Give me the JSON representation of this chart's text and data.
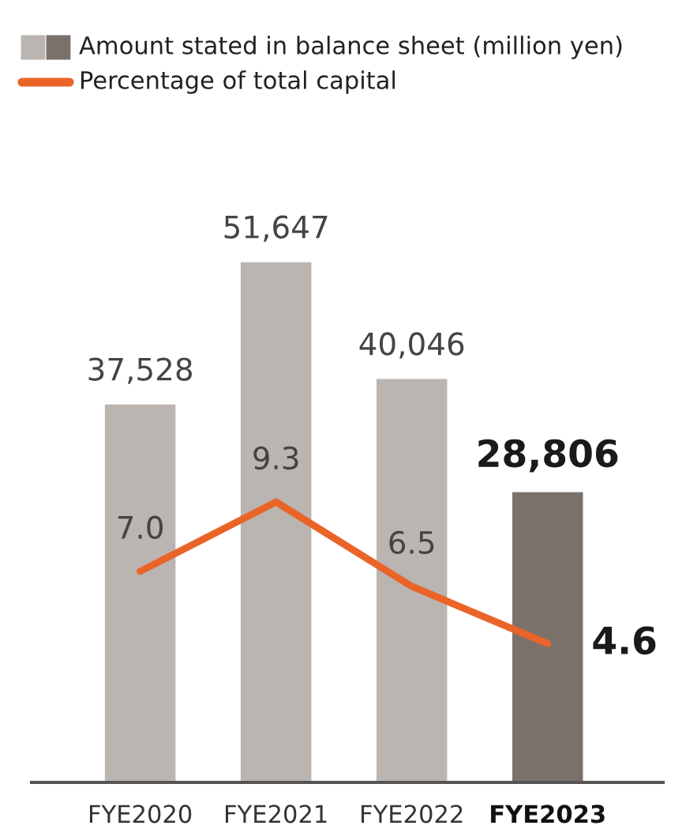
{
  "chart_data": {
    "type": "bar",
    "categories": [
      "FYE2020",
      "FYE2021",
      "FYE2022",
      "FYE2023"
    ],
    "series": [
      {
        "name": "Amount stated in balance sheet (million yen)",
        "colors": [
          "#bab5b0",
          "#bab5b0",
          "#bab5b0",
          "#7b716b"
        ],
        "values": [
          37528,
          51647,
          40046,
          28806
        ],
        "value_labels": [
          "37,528",
          "51,647",
          "40,046",
          "28,806"
        ]
      },
      {
        "name": "Percentage of total capital",
        "type": "line",
        "axis": "y2",
        "color": "#ea6428",
        "values": [
          7.0,
          9.3,
          6.5,
          4.6
        ],
        "value_labels": [
          "7.0",
          "9.3",
          "6.5",
          "4.6"
        ]
      }
    ],
    "tick_labels": "x",
    "grid": false,
    "legend": "top left",
    "marker": "none",
    "line_style": "solid"
  }
}
